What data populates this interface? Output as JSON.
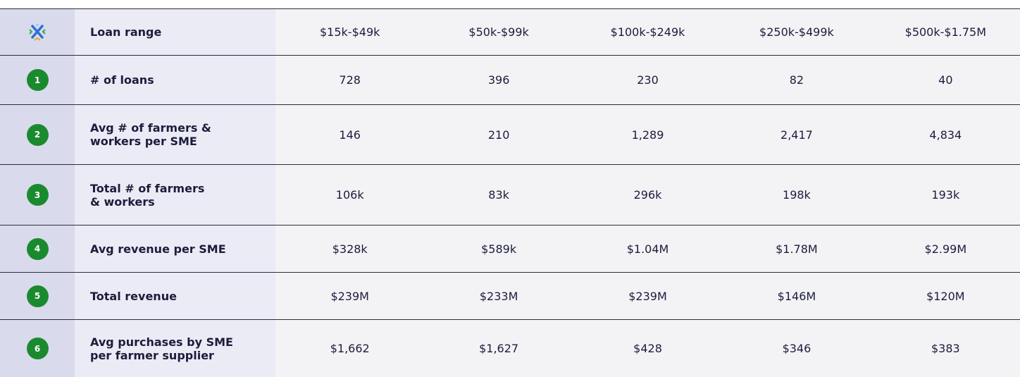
{
  "table": {
    "header": {
      "label": "Loan range",
      "columns": [
        "$15k-$49k",
        "$50k-$99k",
        "$100k-$249k",
        "$250k-$499k",
        "$500k-$1.75M"
      ]
    },
    "rows": [
      {
        "number": "1",
        "label": "# of loans",
        "cells": [
          "728",
          "396",
          "230",
          "82",
          "40"
        ]
      },
      {
        "number": "2",
        "label": "Avg # of farmers &\nworkers per SME",
        "cells": [
          "146",
          "210",
          "1,289",
          "2,417",
          "4,834"
        ]
      },
      {
        "number": "3",
        "label": "Total # of farmers\n& workers",
        "cells": [
          "106k",
          "83k",
          "296k",
          "198k",
          "193k"
        ]
      },
      {
        "number": "4",
        "label": "Avg revenue per SME",
        "cells": [
          "$328k",
          "$589k",
          "$1.04M",
          "$1.78M",
          "$2.99M"
        ]
      },
      {
        "number": "5",
        "label": "Total revenue",
        "cells": [
          "$239M",
          "$233M",
          "$239M",
          "$146M",
          "$120M"
        ]
      },
      {
        "number": "6",
        "label": "Avg purchases by SME\nper farmer supplier",
        "cells": [
          "$1,662",
          "$1,627",
          "$428",
          "$346",
          "$383"
        ]
      }
    ]
  }
}
